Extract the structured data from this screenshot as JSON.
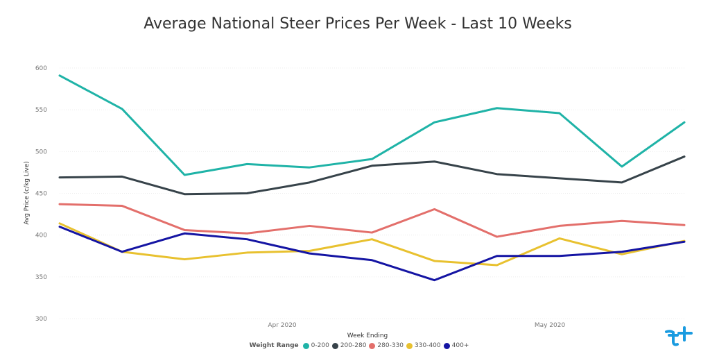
{
  "chart_data": {
    "type": "line",
    "title": "Average National Steer Prices Per Week - Last 10 Weeks",
    "xlabel": "Week Ending",
    "ylabel": "Avg Price (c/kg Live)",
    "ylim": [
      300,
      600
    ],
    "yticks": [
      "600",
      "550",
      "500",
      "450",
      "400",
      "350",
      "300"
    ],
    "x_ticks": [
      "Apr 2020",
      "May 2020"
    ],
    "legend_title": "Weight Range",
    "legend_position": "bottom",
    "grid": true,
    "series": [
      {
        "name": "0-200",
        "color": "#1fb3a7",
        "values": [
          591,
          551,
          472,
          485,
          481,
          491,
          535,
          552,
          546,
          482,
          535
        ]
      },
      {
        "name": "200-280",
        "color": "#37434a",
        "values": [
          469,
          470,
          449,
          450,
          463,
          483,
          488,
          473,
          468,
          463,
          494
        ]
      },
      {
        "name": "280-330",
        "color": "#e36f6b",
        "values": [
          437,
          435,
          406,
          402,
          411,
          403,
          431,
          398,
          411,
          417,
          412
        ]
      },
      {
        "name": "330-400",
        "color": "#e8c12f",
        "values": [
          414,
          380,
          371,
          379,
          381,
          395,
          369,
          364,
          396,
          377,
          393
        ]
      },
      {
        "name": "400+",
        "color": "#1414a3",
        "values": [
          410,
          380,
          402,
          395,
          378,
          370,
          346,
          375,
          375,
          380,
          392
        ]
      }
    ]
  }
}
